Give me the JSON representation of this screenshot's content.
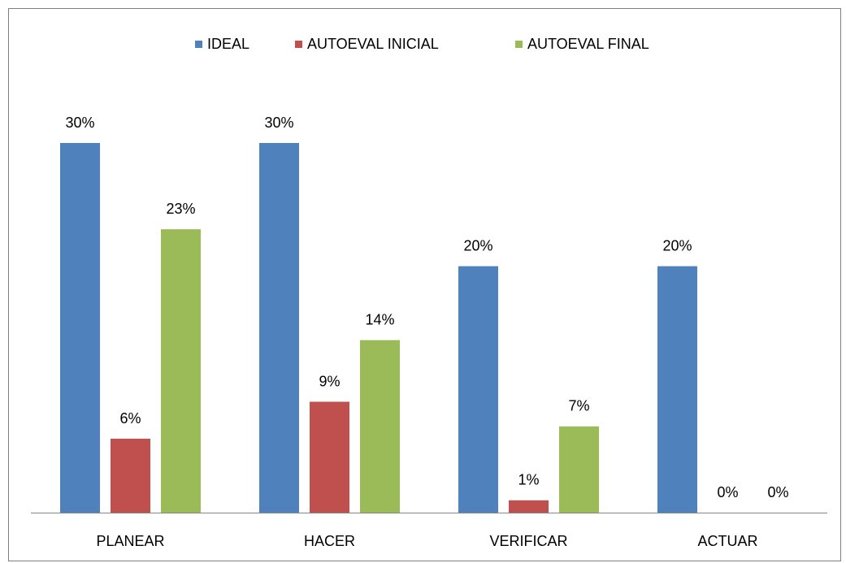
{
  "chart_data": {
    "type": "bar",
    "categories": [
      "PLANEAR",
      "HACER",
      "VERIFICAR",
      "ACTUAR"
    ],
    "series": [
      {
        "name": "IDEAL",
        "color": "#4f81bd",
        "values": [
          30,
          30,
          20,
          20
        ],
        "value_labels": [
          "30%",
          "30%",
          "20%",
          "20%"
        ]
      },
      {
        "name": "AUTOEVAL INICIAL",
        "color": "#c0504d",
        "values": [
          6,
          9,
          1,
          0
        ],
        "value_labels": [
          "6%",
          "9%",
          "1%",
          "0%"
        ]
      },
      {
        "name": "AUTOEVAL FINAL",
        "color": "#9bbb59",
        "values": [
          23,
          14,
          7,
          0
        ],
        "value_labels": [
          "23%",
          "14%",
          "7%",
          "0%"
        ]
      }
    ],
    "legend": "top"
  }
}
